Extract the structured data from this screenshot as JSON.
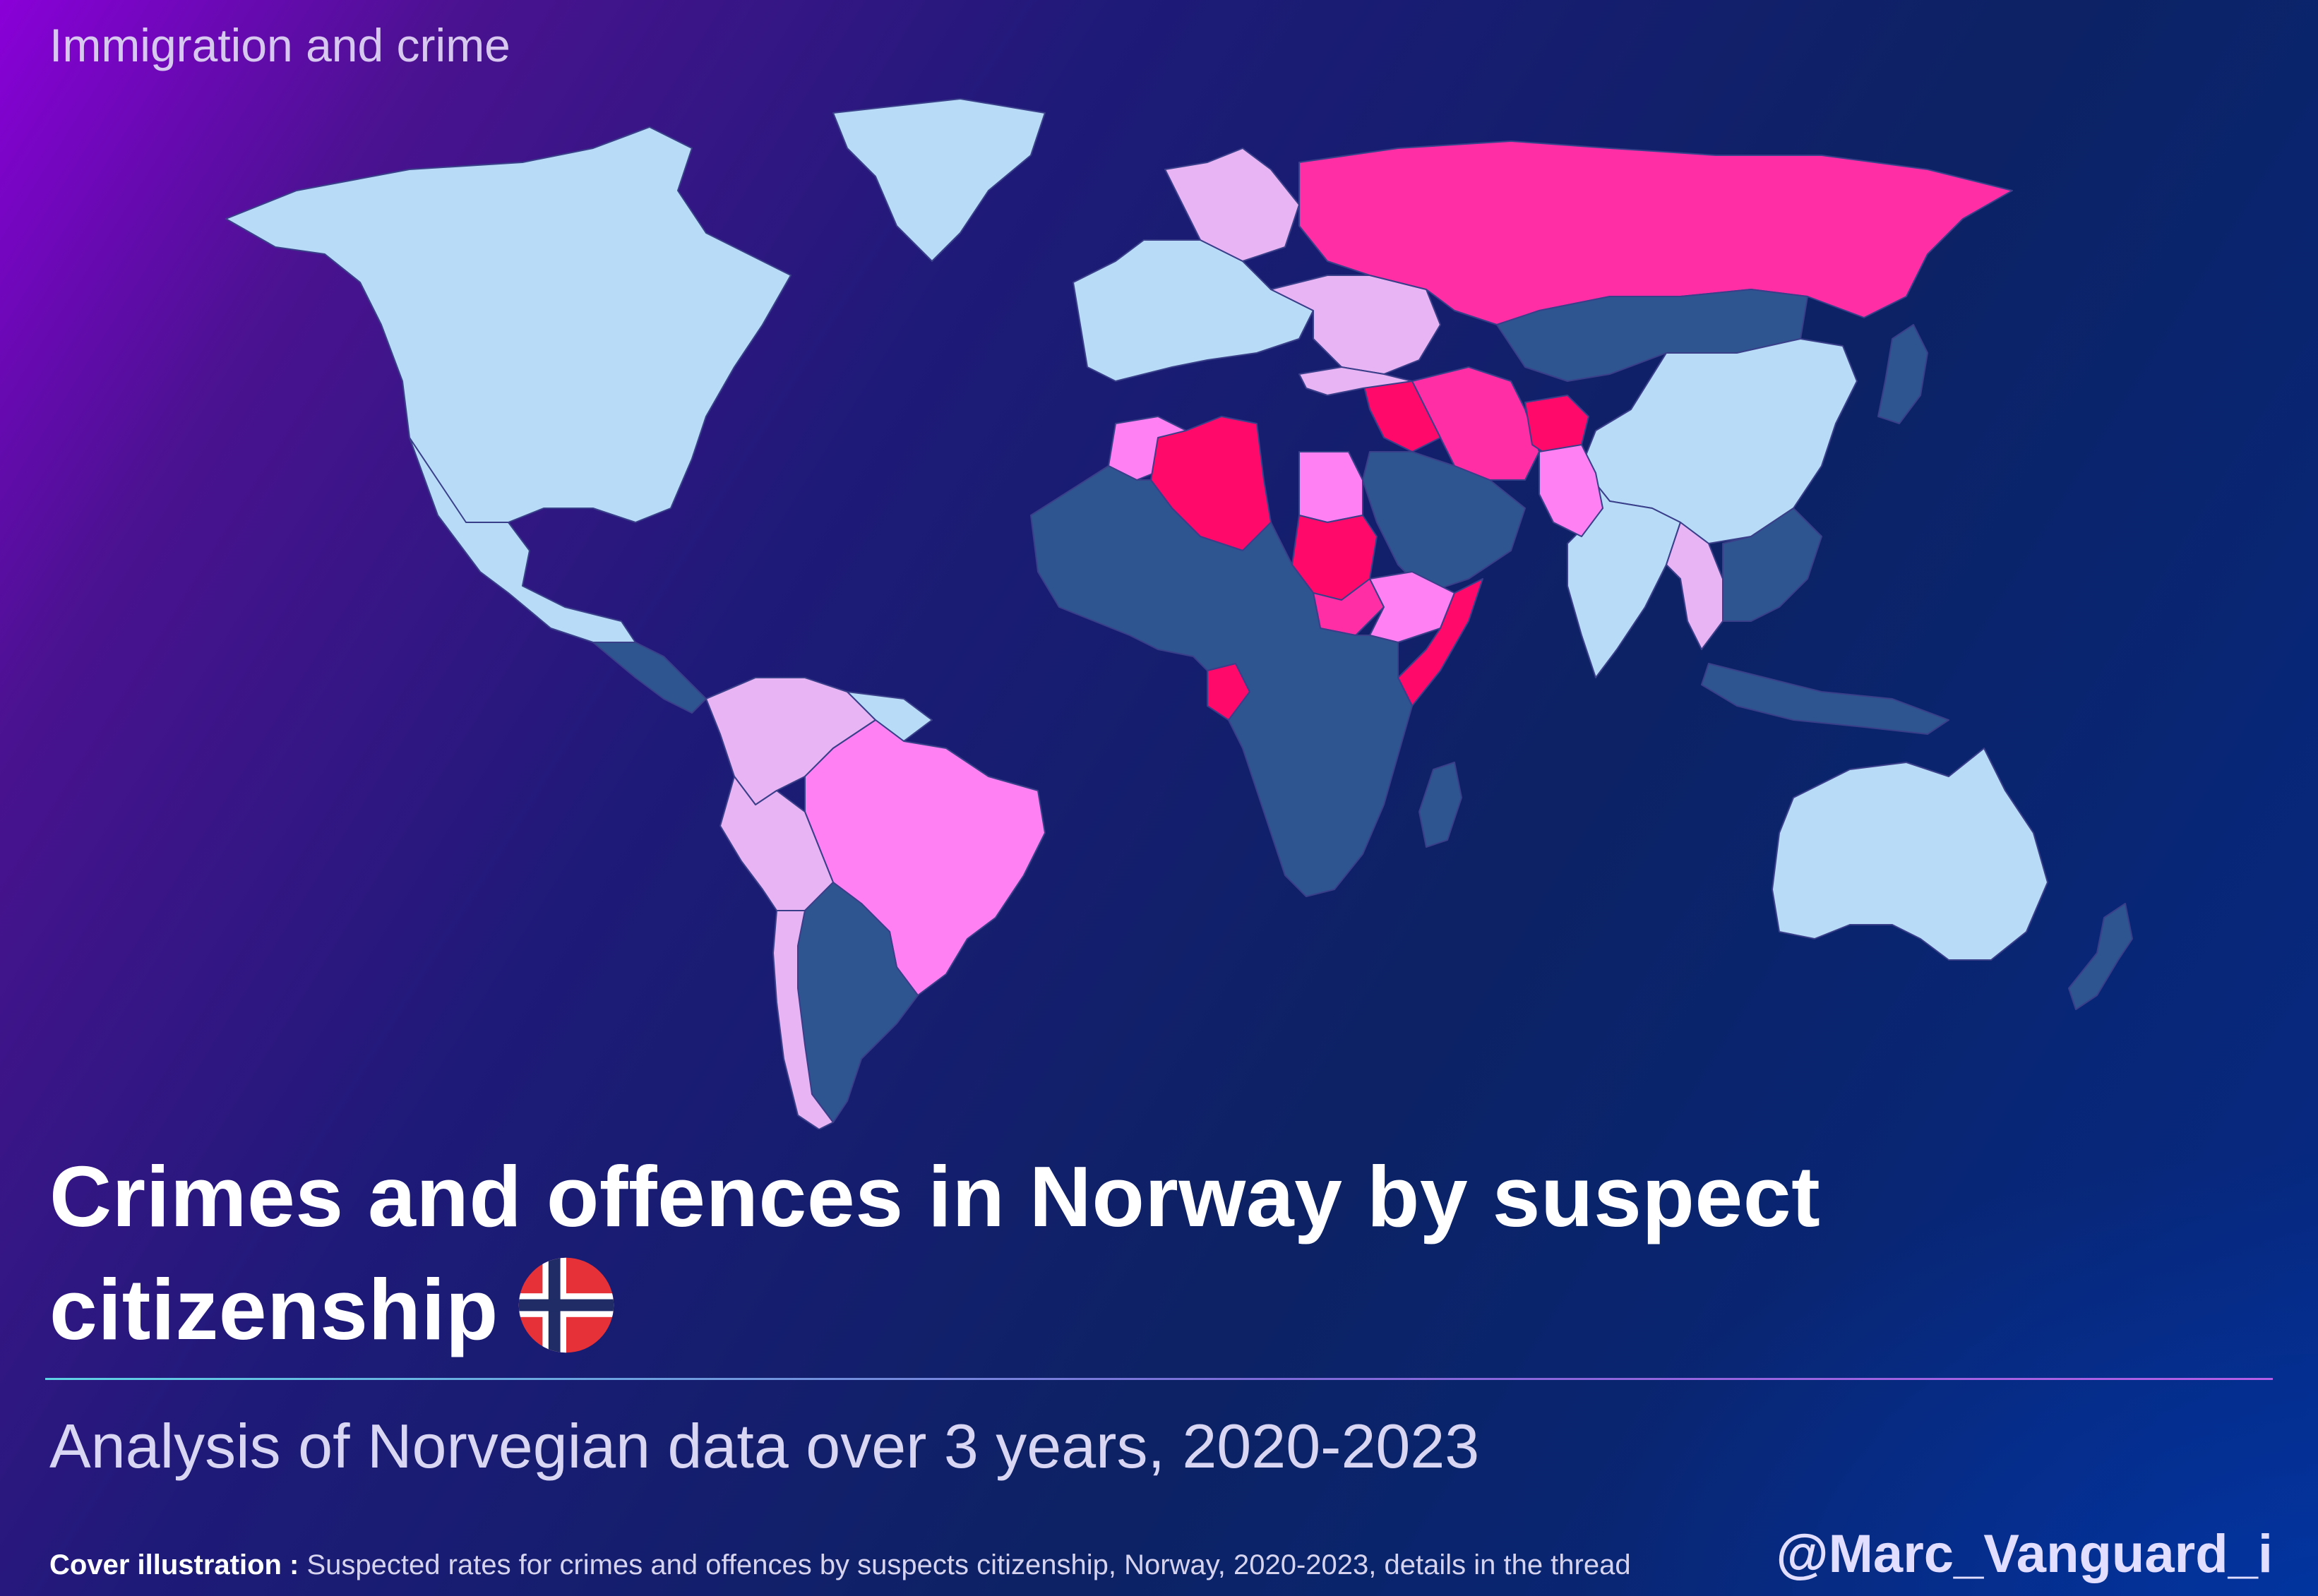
{
  "kicker": "Immigration and crime",
  "title": "Crimes and offences in Norway by suspect citizenship",
  "subtitle": "Analysis of Norvegian data over 3 years, 2020-2023",
  "footer": {
    "lead": "Cover illustration :",
    "text": " Suspected rates for crimes and offences by suspects citizenship, Norway, 2020-2023, details in the thread"
  },
  "handle": "@Marc_Vanguard_i",
  "colors": {
    "lowest": "#b8dcf8",
    "low": "#2e5590",
    "medium_low": "#e8b4f4",
    "medium": "#ff80f2",
    "high": "#ff2ea5",
    "highest": "#ff0a6a"
  },
  "flag": "norway-flag",
  "regions": [
    {
      "name": "north-america",
      "tier": "lowest"
    },
    {
      "name": "greenland",
      "tier": "lowest"
    },
    {
      "name": "mexico",
      "tier": "lowest"
    },
    {
      "name": "central-america",
      "tier": "low"
    },
    {
      "name": "colombia-venezuela",
      "tier": "medium_low"
    },
    {
      "name": "guianas",
      "tier": "lowest"
    },
    {
      "name": "brazil",
      "tier": "medium"
    },
    {
      "name": "peru-bolivia",
      "tier": "medium_low"
    },
    {
      "name": "argentina-paraguay",
      "tier": "low"
    },
    {
      "name": "chile",
      "tier": "medium_low"
    },
    {
      "name": "europe-west",
      "tier": "lowest"
    },
    {
      "name": "europe-east",
      "tier": "medium_low"
    },
    {
      "name": "scandinavia",
      "tier": "medium_low"
    },
    {
      "name": "russia",
      "tier": "high"
    },
    {
      "name": "kazakhstan-mongolia",
      "tier": "low"
    },
    {
      "name": "china",
      "tier": "lowest"
    },
    {
      "name": "india",
      "tier": "lowest"
    },
    {
      "name": "iran-iraq",
      "tier": "high"
    },
    {
      "name": "syria",
      "tier": "highest"
    },
    {
      "name": "afghanistan",
      "tier": "highest"
    },
    {
      "name": "pakistan",
      "tier": "medium"
    },
    {
      "name": "turkey",
      "tier": "medium_low"
    },
    {
      "name": "arabia",
      "tier": "low"
    },
    {
      "name": "morocco",
      "tier": "medium"
    },
    {
      "name": "algeria",
      "tier": "highest"
    },
    {
      "name": "egypt",
      "tier": "medium"
    },
    {
      "name": "sudan",
      "tier": "highest"
    },
    {
      "name": "south-sudan",
      "tier": "high"
    },
    {
      "name": "ethiopia",
      "tier": "medium"
    },
    {
      "name": "somalia",
      "tier": "highest"
    },
    {
      "name": "nigeria",
      "tier": "medium_low"
    },
    {
      "name": "congo",
      "tier": "highest"
    },
    {
      "name": "africa-rest",
      "tier": "low"
    },
    {
      "name": "madagascar",
      "tier": "low"
    },
    {
      "name": "southeast-asia",
      "tier": "low"
    },
    {
      "name": "myanmar-thailand",
      "tier": "medium_low"
    },
    {
      "name": "japan",
      "tier": "low"
    },
    {
      "name": "indonesia",
      "tier": "low"
    },
    {
      "name": "australia",
      "tier": "lowest"
    },
    {
      "name": "new-zealand",
      "tier": "low"
    }
  ]
}
